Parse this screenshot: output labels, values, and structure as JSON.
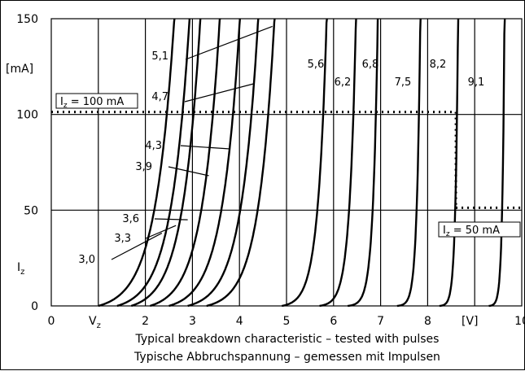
{
  "chart_data": {
    "type": "line",
    "title": "",
    "caption_en": "Typical breakdown characteristic – tested with pulses",
    "caption_de": "Typische Abbruchspannung – gemessen mit Impulsen",
    "xlabel": "[V]",
    "xlabel_sub": "V",
    "xlabel_sub_index": "z",
    "ylabel": "[mA]",
    "ylabel_sub": "I",
    "ylabel_sub_index": "z",
    "xlim": [
      0,
      10
    ],
    "ylim": [
      0,
      150
    ],
    "x_ticks": [
      "0",
      "",
      "2",
      "3",
      "4",
      "5",
      "6",
      "7",
      "8",
      "",
      "10"
    ],
    "y_ticks": [
      "0",
      "50",
      "100",
      "150"
    ],
    "grid": true,
    "ref_lines": {
      "i100": {
        "label_main": "I",
        "label_sub": "z",
        "label_rest": " = 100 mA",
        "y": 100,
        "x_end": 8.6
      },
      "i50": {
        "label_main": "I",
        "label_sub": "z",
        "label_rest": " = 50 mA",
        "y": 50,
        "x_start": 8.6
      }
    },
    "series": [
      {
        "name": "3,0",
        "vz": 1.0,
        "knee": 2.7,
        "steep": 2.5
      },
      {
        "name": "3,3",
        "vz": 1.4,
        "knee": 2.8,
        "steep": 2.6
      },
      {
        "name": "3,6",
        "vz": 1.7,
        "knee": 2.9,
        "steep": 2.7
      },
      {
        "name": "3,9",
        "vz": 2.1,
        "knee": 2.8,
        "steep": 2.7
      },
      {
        "name": "4,3",
        "vz": 2.5,
        "knee": 2.6,
        "steep": 2.7
      },
      {
        "name": "4,7",
        "vz": 2.9,
        "knee": 2.3,
        "steep": 2.8
      },
      {
        "name": "5,1",
        "vz": 3.3,
        "knee": 2.0,
        "steep": 3.0
      },
      {
        "name": "5,6",
        "vz": 4.9,
        "knee": 0.8,
        "steep": 5.5
      },
      {
        "name": "6,2",
        "vz": 5.7,
        "knee": 0.45,
        "steep": 7.5
      },
      {
        "name": "6,8",
        "vz": 6.3,
        "knee": 0.25,
        "steep": 10
      },
      {
        "name": "7,5",
        "vz": 7.35,
        "knee": 0.15,
        "steep": 14
      },
      {
        "name": "8,2",
        "vz": 8.25,
        "knee": 0.12,
        "steep": 18
      },
      {
        "name": "9,1",
        "vz": 9.3,
        "knee": 0.1,
        "steep": 22
      }
    ]
  }
}
